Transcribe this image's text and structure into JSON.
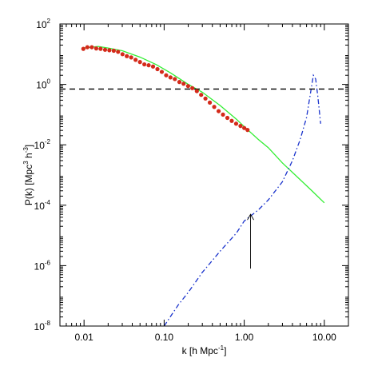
{
  "chart_data": {
    "type": "line",
    "xscale": "log",
    "yscale": "log",
    "xlim": [
      0.005,
      20
    ],
    "ylim": [
      1e-08,
      100
    ],
    "xlabel": {
      "main": "k [h Mpc",
      "sup": "-1",
      "end": "]"
    },
    "ylabel": {
      "pre": "P(k) [Mpc",
      "sup1": "3",
      "mid": " h",
      "sup2": "-3",
      "end": "]"
    },
    "x_ticks": [
      {
        "value": 0.01,
        "label": "0.01"
      },
      {
        "value": 0.1,
        "label": "0.10"
      },
      {
        "value": 1,
        "label": "1.00"
      },
      {
        "value": 10,
        "label": "10.00"
      }
    ],
    "y_ticks": [
      {
        "exp": -8,
        "base": "10",
        "sup": "-8"
      },
      {
        "exp": -6,
        "base": "10",
        "sup": "-6"
      },
      {
        "exp": -4,
        "base": "10",
        "sup": "-4"
      },
      {
        "exp": -2,
        "base": "10",
        "sup": "-2"
      },
      {
        "exp": 0,
        "base": "10",
        "sup": "0"
      },
      {
        "exp": 2,
        "base": "10",
        "sup": "2"
      }
    ],
    "series": [
      {
        "style": "solid",
        "color": "#33ee33",
        "x": [
          0.01,
          0.015,
          0.02,
          0.03,
          0.05,
          0.08,
          0.12,
          0.2,
          0.3,
          0.5,
          0.8,
          1.0,
          1.5,
          2,
          3,
          5,
          7,
          10
        ],
        "y": [
          16,
          18,
          16,
          13,
          8,
          4.5,
          2.4,
          1.0,
          0.55,
          0.2,
          0.07,
          0.04,
          0.015,
          0.008,
          0.0025,
          0.0007,
          0.0003,
          0.00012
        ]
      },
      {
        "style": "dashdot",
        "color": "#1a33cc",
        "x": [
          0.1,
          0.15,
          0.2,
          0.3,
          0.5,
          0.8,
          1.0,
          1.5,
          2,
          3,
          4,
          5,
          6,
          6.5,
          7,
          7.3,
          7.8,
          8.3,
          9
        ],
        "y": [
          1e-08,
          5e-08,
          1.3e-07,
          6e-07,
          3e-06,
          1.2e-05,
          3e-05,
          7e-05,
          0.00015,
          0.0006,
          0.003,
          0.015,
          0.08,
          0.3,
          1.0,
          2.0,
          1.5,
          0.4,
          0.05
        ]
      },
      {
        "style": "dashed",
        "color": "#000000",
        "x": [
          0.005,
          20
        ],
        "y": [
          0.7,
          0.7
        ]
      },
      {
        "style": "points",
        "color": "#d42a1a",
        "x": [
          0.0098,
          0.011,
          0.0125,
          0.0142,
          0.0161,
          0.0183,
          0.0207,
          0.0235,
          0.0266,
          0.0302,
          0.0342,
          0.0388,
          0.044,
          0.0499,
          0.0566,
          0.0641,
          0.0727,
          0.0825,
          0.0935,
          0.106,
          0.12,
          0.136,
          0.155,
          0.175,
          0.199,
          0.225,
          0.256,
          0.29,
          0.328,
          0.372,
          0.422,
          0.479,
          0.543,
          0.616,
          0.698,
          0.792,
          0.898,
          1.0,
          1.1
        ],
        "y": [
          15,
          17,
          17,
          15.5,
          15,
          14,
          13.5,
          13,
          12,
          10,
          8.6,
          7.8,
          6.5,
          5.5,
          4.6,
          4.3,
          3.9,
          3.2,
          2.6,
          2.0,
          1.7,
          1.5,
          1.2,
          1.05,
          0.88,
          0.75,
          0.6,
          0.45,
          0.34,
          0.25,
          0.18,
          0.13,
          0.1,
          0.078,
          0.062,
          0.05,
          0.042,
          0.036,
          0.031
        ]
      }
    ],
    "arrow": {
      "x": 1.2,
      "y_from": 8e-07,
      "y_to": 5e-05
    }
  }
}
